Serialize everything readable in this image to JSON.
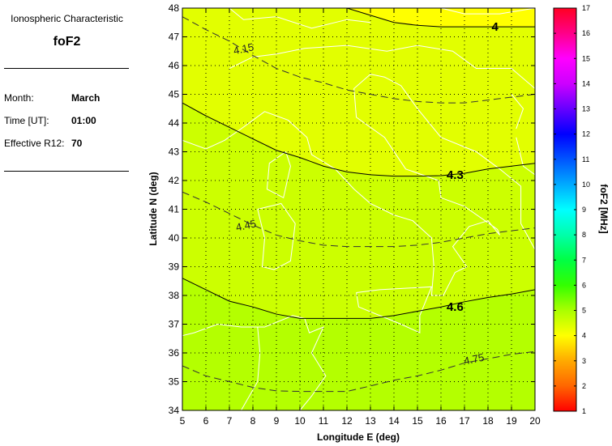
{
  "panel": {
    "heading": "Ionospheric Characteristic",
    "characteristic": "foF2",
    "rows": [
      {
        "label": "Month:",
        "value": "March"
      },
      {
        "label": "Time [UT]:",
        "value": "01:00"
      },
      {
        "label": "Effective R12:",
        "value": "70"
      }
    ]
  },
  "chart_data": {
    "type": "contour",
    "xlabel": "Longitude E (deg)",
    "ylabel": "Latitude N (deg)",
    "xlim": [
      5,
      20
    ],
    "ylim": [
      34,
      48
    ],
    "xticks": [
      "5",
      "6",
      "7",
      "8",
      "9",
      "10",
      "11",
      "12",
      "13",
      "14",
      "15",
      "16",
      "17",
      "18",
      "19",
      "20"
    ],
    "yticks": [
      "34",
      "35",
      "36",
      "37",
      "38",
      "39",
      "40",
      "41",
      "42",
      "43",
      "44",
      "45",
      "46",
      "47",
      "48"
    ],
    "grid": true,
    "grid_style": "dotted",
    "contours": [
      {
        "level": 4,
        "label": "4",
        "style": "solid",
        "label_at": [
          18.3,
          47.35
        ],
        "points": [
          [
            12,
            48
          ],
          [
            13,
            47.75
          ],
          [
            14,
            47.5
          ],
          [
            15,
            47.4
          ],
          [
            16,
            47.35
          ],
          [
            20,
            47.35
          ]
        ]
      },
      {
        "level": 4.15,
        "label": "4.15",
        "style": "dashed",
        "label_at": [
          7.6,
          46.6
        ],
        "points": [
          [
            5,
            47.7
          ],
          [
            6,
            47.25
          ],
          [
            7,
            46.85
          ],
          [
            8,
            46.35
          ],
          [
            9,
            45.9
          ],
          [
            10,
            45.6
          ],
          [
            11,
            45.4
          ],
          [
            12,
            45.15
          ],
          [
            13,
            45.0
          ],
          [
            14,
            44.85
          ],
          [
            15,
            44.75
          ],
          [
            16,
            44.7
          ],
          [
            17,
            44.7
          ],
          [
            18,
            44.8
          ],
          [
            19,
            44.9
          ],
          [
            20,
            45.0
          ]
        ]
      },
      {
        "level": 4.3,
        "label": "4.3",
        "style": "solid",
        "label_at": [
          16.6,
          42.2
        ],
        "points": [
          [
            5,
            44.7
          ],
          [
            6,
            44.25
          ],
          [
            7,
            43.85
          ],
          [
            8,
            43.45
          ],
          [
            9,
            43.05
          ],
          [
            10,
            42.8
          ],
          [
            11,
            42.5
          ],
          [
            12,
            42.3
          ],
          [
            13,
            42.2
          ],
          [
            14,
            42.15
          ],
          [
            15,
            42.15
          ],
          [
            16,
            42.17
          ],
          [
            17,
            42.25
          ],
          [
            18,
            42.4
          ],
          [
            19,
            42.5
          ],
          [
            20,
            42.6
          ]
        ]
      },
      {
        "level": 4.45,
        "label": "4.45",
        "style": "dashed",
        "label_at": [
          7.7,
          40.45
        ],
        "points": [
          [
            5,
            41.6
          ],
          [
            6,
            41.25
          ],
          [
            7,
            40.85
          ],
          [
            8,
            40.45
          ],
          [
            9,
            40.1
          ],
          [
            10,
            39.9
          ],
          [
            11,
            39.75
          ],
          [
            12,
            39.7
          ],
          [
            13,
            39.7
          ],
          [
            14,
            39.7
          ],
          [
            15,
            39.75
          ],
          [
            16,
            39.85
          ],
          [
            17,
            40.0
          ],
          [
            18,
            40.15
          ],
          [
            19,
            40.25
          ],
          [
            20,
            40.35
          ]
        ]
      },
      {
        "level": 4.6,
        "label": "4.6",
        "style": "solid",
        "label_at": [
          16.6,
          37.6
        ],
        "points": [
          [
            5,
            38.6
          ],
          [
            6,
            38.2
          ],
          [
            7,
            37.8
          ],
          [
            8,
            37.6
          ],
          [
            9,
            37.35
          ],
          [
            10,
            37.2
          ],
          [
            11,
            37.2
          ],
          [
            12,
            37.2
          ],
          [
            13,
            37.2
          ],
          [
            14,
            37.3
          ],
          [
            15,
            37.45
          ],
          [
            16,
            37.6
          ],
          [
            17,
            37.78
          ],
          [
            18,
            37.93
          ],
          [
            19,
            38.05
          ],
          [
            20,
            38.2
          ]
        ]
      },
      {
        "level": 4.75,
        "label": "4.75",
        "style": "dashed",
        "label_at": [
          17.4,
          35.8
        ],
        "points": [
          [
            5,
            35.55
          ],
          [
            6,
            35.2
          ],
          [
            7,
            35.0
          ],
          [
            8,
            34.8
          ],
          [
            9,
            34.68
          ],
          [
            10,
            34.66
          ],
          [
            11,
            34.66
          ],
          [
            12,
            34.66
          ],
          [
            13,
            34.85
          ],
          [
            14,
            35.05
          ],
          [
            15,
            35.2
          ],
          [
            16,
            35.4
          ],
          [
            17,
            35.65
          ],
          [
            18,
            35.8
          ],
          [
            19,
            35.95
          ],
          [
            20,
            36.05
          ]
        ]
      }
    ],
    "band_colors": [
      "#ffff00",
      "#e2ff00",
      "#ccff00",
      "#b4ff00"
    ],
    "colorbar": {
      "label": "foF2 [MHz]",
      "range": [
        1,
        17
      ],
      "ticks": [
        "1",
        "2",
        "3",
        "4",
        "5",
        "6",
        "7",
        "8",
        "9",
        "10",
        "11",
        "12",
        "13",
        "14",
        "15",
        "16",
        "17"
      ],
      "stops": [
        "#ff0000",
        "#ff6600",
        "#ffaa00",
        "#ffff00",
        "#aaff00",
        "#33ff00",
        "#00ff44",
        "#00ffaa",
        "#00ffff",
        "#00aaff",
        "#0055ff",
        "#0000ff",
        "#6600ff",
        "#cc00ff",
        "#ff00ff",
        "#ff0088",
        "#ff0022"
      ]
    }
  }
}
